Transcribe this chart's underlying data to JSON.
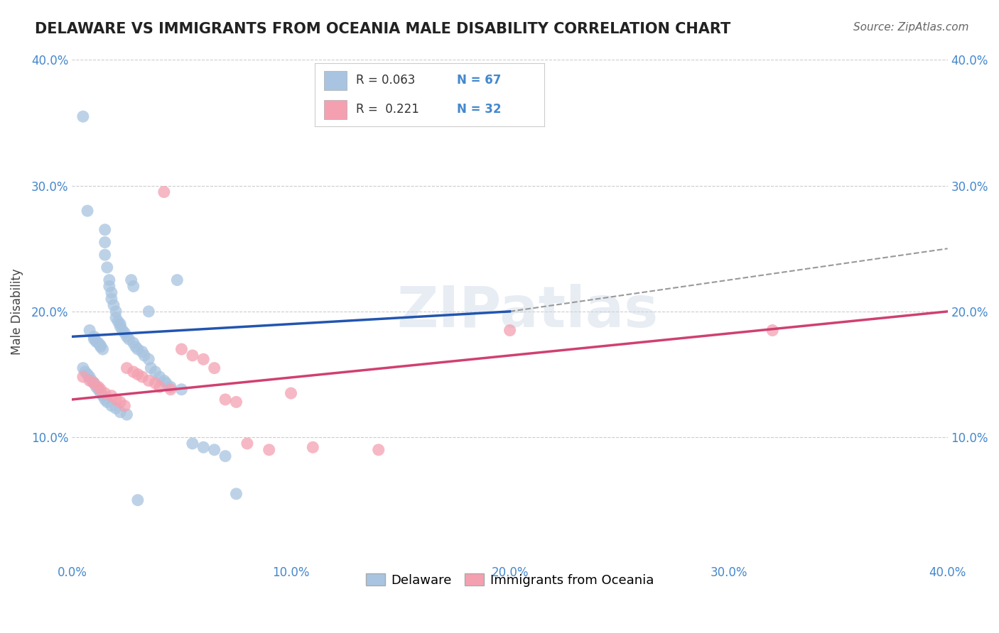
{
  "title": "DELAWARE VS IMMIGRANTS FROM OCEANIA MALE DISABILITY CORRELATION CHART",
  "source": "Source: ZipAtlas.com",
  "ylabel": "Male Disability",
  "xlim": [
    0.0,
    0.4
  ],
  "ylim": [
    0.0,
    0.4
  ],
  "ytick_positions": [
    0.1,
    0.2,
    0.3,
    0.4
  ],
  "xtick_positions": [
    0.0,
    0.1,
    0.2,
    0.3,
    0.4
  ],
  "ytick_labels": [
    "10.0%",
    "20.0%",
    "30.0%",
    "40.0%"
  ],
  "xtick_labels": [
    "0.0%",
    "10.0%",
    "20.0%",
    "30.0%",
    "40.0%"
  ],
  "legend_r1": "0.063",
  "legend_n1": "67",
  "legend_r2": "0.221",
  "legend_n2": "32",
  "color_delaware": "#a8c4e0",
  "color_oceania": "#f4a0b0",
  "color_line_delaware": "#2255b0",
  "color_line_oceania": "#d04070",
  "color_axis_text": "#4488cc",
  "background_color": "#ffffff",
  "grid_color": "#cccccc",
  "watermark": "ZIPatlas",
  "del_line_x0": 0.0,
  "del_line_y0": 0.18,
  "del_line_x1": 0.2,
  "del_line_y1": 0.2,
  "oce_line_x0": 0.0,
  "oce_line_y0": 0.13,
  "oce_line_x1": 0.4,
  "oce_line_y1": 0.2,
  "dash_line_x0": 0.2,
  "dash_line_y0": 0.2,
  "dash_line_x1": 0.4,
  "dash_line_y1": 0.25,
  "delaware_x": [
    0.005,
    0.007,
    0.008,
    0.01,
    0.01,
    0.011,
    0.012,
    0.013,
    0.013,
    0.014,
    0.015,
    0.015,
    0.015,
    0.016,
    0.017,
    0.017,
    0.018,
    0.018,
    0.019,
    0.02,
    0.02,
    0.021,
    0.022,
    0.022,
    0.023,
    0.024,
    0.025,
    0.026,
    0.027,
    0.028,
    0.028,
    0.029,
    0.03,
    0.032,
    0.033,
    0.035,
    0.035,
    0.036,
    0.038,
    0.04,
    0.042,
    0.043,
    0.045,
    0.048,
    0.05,
    0.055,
    0.06,
    0.065,
    0.07,
    0.075,
    0.005,
    0.006,
    0.007,
    0.008,
    0.009,
    0.01,
    0.011,
    0.012,
    0.013,
    0.014,
    0.015,
    0.016,
    0.018,
    0.02,
    0.022,
    0.025,
    0.03
  ],
  "delaware_y": [
    0.355,
    0.28,
    0.185,
    0.18,
    0.178,
    0.176,
    0.175,
    0.173,
    0.172,
    0.17,
    0.265,
    0.255,
    0.245,
    0.235,
    0.225,
    0.22,
    0.215,
    0.21,
    0.205,
    0.2,
    0.195,
    0.192,
    0.19,
    0.188,
    0.185,
    0.183,
    0.18,
    0.178,
    0.225,
    0.22,
    0.175,
    0.172,
    0.17,
    0.168,
    0.165,
    0.162,
    0.2,
    0.155,
    0.152,
    0.148,
    0.145,
    0.143,
    0.14,
    0.225,
    0.138,
    0.095,
    0.092,
    0.09,
    0.085,
    0.055,
    0.155,
    0.152,
    0.15,
    0.148,
    0.145,
    0.143,
    0.14,
    0.138,
    0.135,
    0.133,
    0.13,
    0.128,
    0.125,
    0.123,
    0.12,
    0.118,
    0.05
  ],
  "oceania_x": [
    0.005,
    0.008,
    0.01,
    0.012,
    0.013,
    0.015,
    0.018,
    0.02,
    0.022,
    0.024,
    0.025,
    0.028,
    0.03,
    0.032,
    0.035,
    0.038,
    0.04,
    0.042,
    0.045,
    0.05,
    0.055,
    0.06,
    0.065,
    0.07,
    0.075,
    0.08,
    0.09,
    0.1,
    0.11,
    0.14,
    0.2,
    0.32
  ],
  "oceania_y": [
    0.148,
    0.145,
    0.143,
    0.14,
    0.138,
    0.135,
    0.133,
    0.13,
    0.128,
    0.125,
    0.155,
    0.152,
    0.15,
    0.148,
    0.145,
    0.143,
    0.14,
    0.295,
    0.138,
    0.17,
    0.165,
    0.162,
    0.155,
    0.13,
    0.128,
    0.095,
    0.09,
    0.135,
    0.092,
    0.09,
    0.185,
    0.185
  ]
}
